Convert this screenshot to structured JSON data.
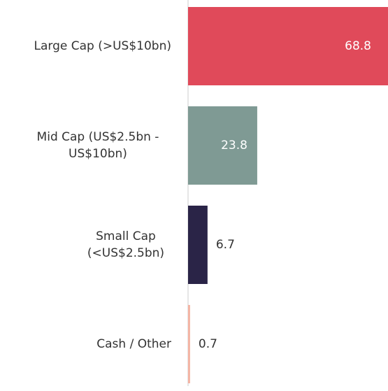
{
  "chart_data": {
    "type": "bar",
    "orientation": "horizontal",
    "categories": [
      [
        "Large Cap (>US$10bn)"
      ],
      [
        "Mid Cap (US$2.5bn -",
        "US$10bn)"
      ],
      [
        "Small Cap",
        "(<US$2.5bn)"
      ],
      [
        "Cash / Other"
      ]
    ],
    "values": [
      68.8,
      23.8,
      6.7,
      0.7
    ],
    "colors": [
      "#e04a5a",
      "#7f9a94",
      "#2a2447",
      "#f4b3a3"
    ]
  }
}
